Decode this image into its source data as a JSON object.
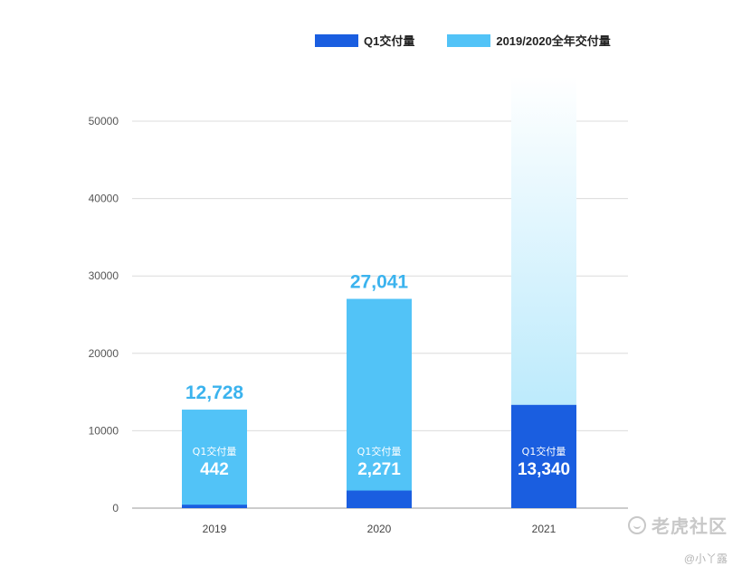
{
  "legend": [
    {
      "label": "Q1交付量",
      "color": "#1a5ee0"
    },
    {
      "label": "2019/2020全年交付量",
      "color": "#52c3f7"
    }
  ],
  "watermark": {
    "brand": "老虎社区",
    "author": "@小丫露"
  },
  "chart_data": {
    "type": "bar",
    "categories": [
      "2019",
      "2020",
      "2021"
    ],
    "series": [
      {
        "name": "Q1交付量",
        "values": [
          442,
          2271,
          13340
        ],
        "labels": [
          "442",
          "2,271",
          "13,340"
        ],
        "color": "#1a5ee0"
      },
      {
        "name": "2019/2020全年交付量",
        "values": [
          12728,
          27041,
          null
        ],
        "labels": [
          "12,728",
          "27,041",
          ""
        ],
        "color": "#52c3f7"
      }
    ],
    "bar_caption": "Q1交付量",
    "y_ticks": [
      "0",
      "10000",
      "20000",
      "30000",
      "40000",
      "50000"
    ],
    "ylim": [
      0,
      50000
    ],
    "grid": true,
    "legend_position": "top-right",
    "colors": {
      "q1": "#1a5ee0",
      "annual": "#52c3f7",
      "value_label": "#3bb3ee",
      "gradient_top": "#ffffff",
      "gradient_bottom": "#a8e4fb"
    }
  }
}
